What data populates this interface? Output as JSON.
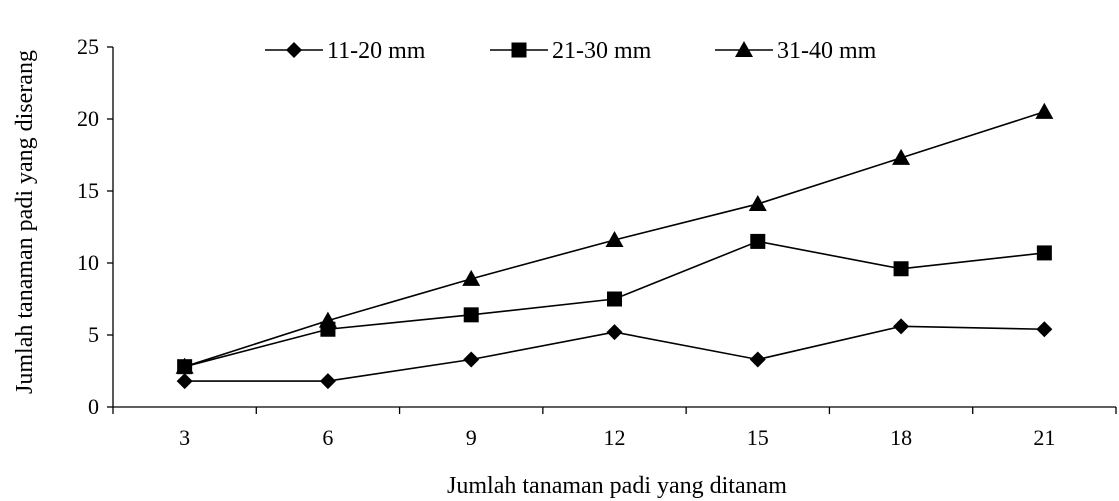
{
  "chart_data": {
    "type": "line",
    "title": "",
    "xlabel": "Jumlah tanaman padi yang ditanam",
    "ylabel": "Jumlah tanaman padi yang diserang",
    "categories": [
      "3",
      "6",
      "9",
      "12",
      "15",
      "18",
      "21"
    ],
    "y_ticks": [
      "0",
      "5",
      "10",
      "15",
      "20",
      "25"
    ],
    "ylim": [
      0,
      25
    ],
    "grid": false,
    "legend_position": "top",
    "series": [
      {
        "name": "11-20 mm",
        "marker": "diamond",
        "values": [
          1.8,
          1.8,
          3.3,
          5.2,
          3.3,
          5.6,
          5.4
        ]
      },
      {
        "name": "21-30 mm",
        "marker": "square",
        "values": [
          2.8,
          5.4,
          6.4,
          7.5,
          11.5,
          9.6,
          10.7
        ]
      },
      {
        "name": "31-40 mm",
        "marker": "triangle",
        "values": [
          2.8,
          6.0,
          8.9,
          11.6,
          14.1,
          17.3,
          20.5
        ]
      }
    ],
    "colors": {
      "line": "#000000",
      "marker": "#000000",
      "background": "#ffffff"
    }
  }
}
